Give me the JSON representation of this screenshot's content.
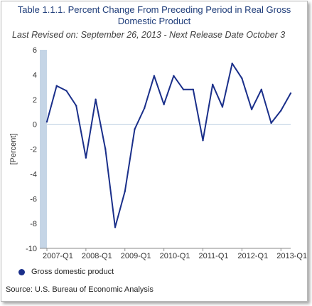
{
  "chart_data": {
    "type": "line",
    "title": "Table 1.1.1. Percent Change From Preceding Period in Real Gross Domestic Product",
    "title_lines": [
      "Table 1.1.1. Percent Change From Preceding Period in Real Gross",
      "Domestic Product"
    ],
    "subtitle": "Last Revised on: September 26, 2013 - Next Release Date October 3",
    "ylabel": "[Percent]",
    "xlabel": "",
    "ylim": [
      -10,
      6
    ],
    "yticks": [
      "6",
      "4",
      "2",
      "0",
      "-2",
      "-4",
      "-6",
      "-8",
      "-10"
    ],
    "xticks": [
      "2007-Q1",
      "2008-Q1",
      "2009-Q1",
      "2010-Q1",
      "2011-Q1",
      "2012-Q1",
      "2013-Q1"
    ],
    "x": [
      "2007-Q1",
      "2007-Q2",
      "2007-Q3",
      "2007-Q4",
      "2008-Q1",
      "2008-Q2",
      "2008-Q3",
      "2008-Q4",
      "2009-Q1",
      "2009-Q2",
      "2009-Q3",
      "2009-Q4",
      "2010-Q1",
      "2010-Q2",
      "2010-Q3",
      "2010-Q4",
      "2011-Q1",
      "2011-Q2",
      "2011-Q3",
      "2011-Q4",
      "2012-Q1",
      "2012-Q2",
      "2012-Q3",
      "2012-Q4",
      "2013-Q1",
      "2013-Q2"
    ],
    "series": [
      {
        "name": "Gross domestic product",
        "color": "#1a2f8a",
        "values": [
          0.2,
          3.1,
          2.7,
          1.5,
          -2.7,
          2.0,
          -2.0,
          -8.3,
          -5.4,
          -0.4,
          1.3,
          3.9,
          1.6,
          3.9,
          2.8,
          2.8,
          -1.3,
          3.2,
          1.4,
          4.9,
          3.7,
          1.2,
          2.8,
          0.1,
          1.1,
          2.5
        ]
      }
    ],
    "grid": "horizontal zero line only",
    "legend_position": "bottom-left"
  },
  "source": "Source: U.S. Bureau of Economic Analysis",
  "colors": {
    "line": "#1a2f8a",
    "title": "#1f3d7a",
    "axis_band": "#c5d5e6",
    "zero_line": "#b8cde0"
  }
}
